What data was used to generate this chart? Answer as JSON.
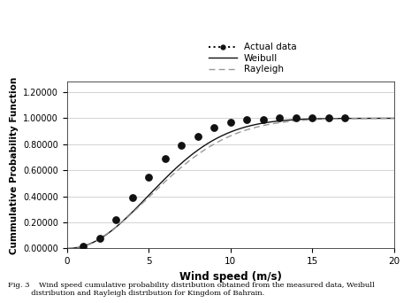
{
  "actual_x": [
    1,
    2,
    3,
    4,
    5,
    6,
    7,
    8,
    9,
    10,
    11,
    12,
    13,
    14,
    15,
    16,
    17
  ],
  "actual_y": [
    0.02,
    0.08,
    0.22,
    0.39,
    0.55,
    0.69,
    0.79,
    0.86,
    0.93,
    0.97,
    0.99,
    0.99,
    1.0,
    1.0,
    1.0,
    1.0,
    1.0
  ],
  "weibull_k": 2.1,
  "weibull_c": 6.8,
  "rayleigh_sigma": 5.0,
  "xlim": [
    0,
    20
  ],
  "ylim": [
    0.0,
    1.28
  ],
  "yticks": [
    0.0,
    0.2,
    0.4,
    0.6,
    0.8,
    1.0,
    1.2
  ],
  "ytick_labels": [
    "0.00000",
    "0.20000",
    "0.40000",
    "0.60000",
    "0.80000",
    "1.00000",
    "1.20000"
  ],
  "xticks": [
    0,
    5,
    10,
    15,
    20
  ],
  "xlabel": "Wind speed (m/s)",
  "ylabel": "Cummulative Probability Function",
  "legend_actual": "Actual data",
  "legend_weibull": "Weibull",
  "legend_rayleigh": "Rayleigh",
  "dot_color": "#111111",
  "weibull_color": "#111111",
  "rayleigh_color": "#999999",
  "bg_color": "#ffffff",
  "grid_color": "#cccccc"
}
